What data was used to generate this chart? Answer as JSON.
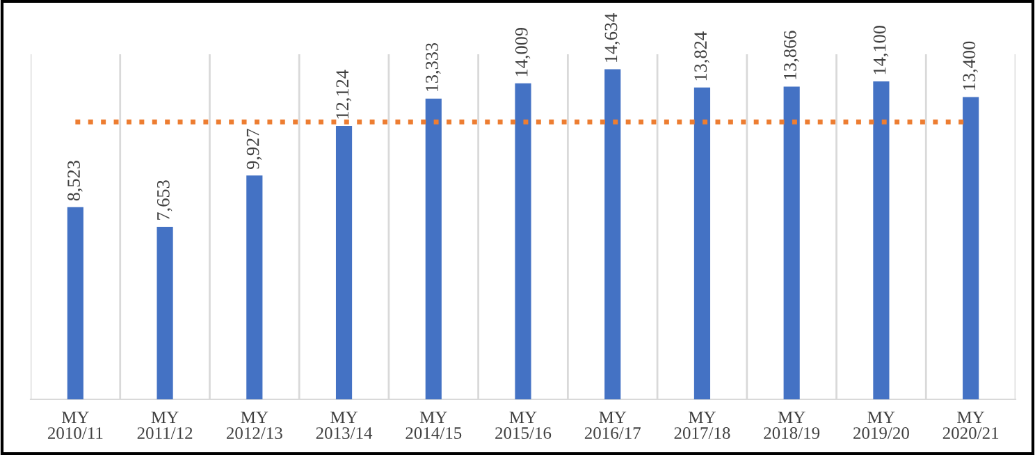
{
  "chart_data": {
    "type": "bar",
    "categories": [
      "MY\n2010/11",
      "MY\n2011/12",
      "MY\n2012/13",
      "MY\n2013/14",
      "MY\n2014/15",
      "MY\n2015/16",
      "MY\n2016/17",
      "MY\n2017/18",
      "MY\n2018/19",
      "MY\n2019/20",
      "MY\n2020/21"
    ],
    "values": [
      8523,
      7653,
      9927,
      12124,
      13333,
      14009,
      14634,
      13824,
      13866,
      14100,
      13400
    ],
    "value_labels": [
      "8,523",
      "7,653",
      "9,927",
      "12,124",
      "13,333",
      "14,009",
      "14,634",
      "13,824",
      "13,866",
      "14,100",
      "13,400"
    ],
    "color": "#4472c4",
    "ylim": [
      0,
      15300
    ],
    "grid": "x",
    "ref_lines": [
      {
        "axis": "y",
        "value": 12300,
        "color": "#ed7d31",
        "line_style": "dotted"
      }
    ]
  }
}
